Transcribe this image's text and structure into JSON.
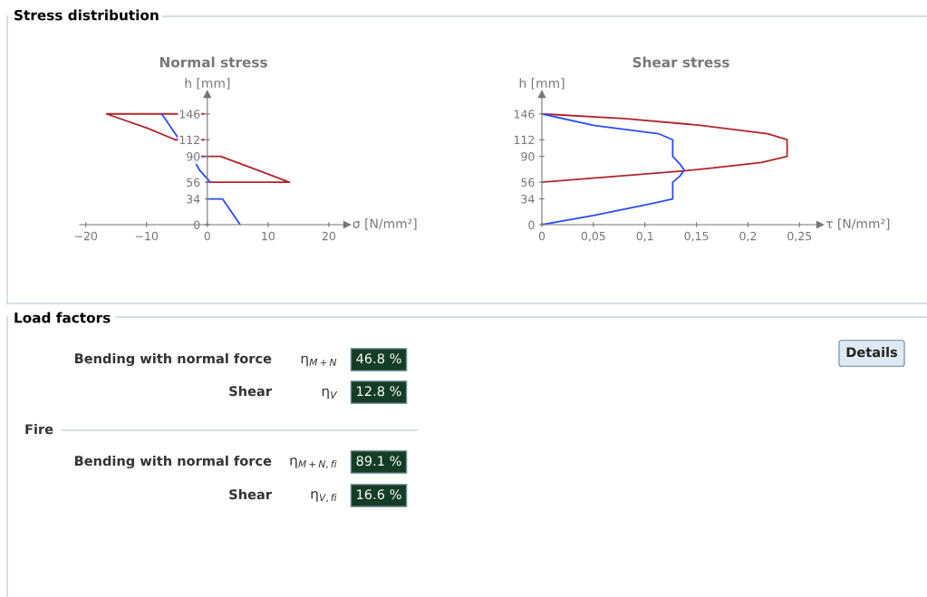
{
  "chart_data": [
    {
      "type": "line",
      "title": "Normal stress",
      "annotations": [
        "Stress distribution"
      ],
      "xlabel": "σ [N/mm²]",
      "ylabel": "h [mm]",
      "xlim": [
        -21,
        23
      ],
      "xticks": [
        {
          "value": -20,
          "label": "−20"
        },
        {
          "value": -10,
          "label": "−10"
        },
        0,
        10,
        20
      ],
      "ylim": [
        0,
        172
      ],
      "yticks": [
        0,
        34,
        56,
        90,
        112,
        146
      ],
      "marker": "none",
      "series": [
        {
          "color": "#b0242c",
          "x": [
            -0.6,
            -16.6,
            -9.8,
            -5.3,
            -0.6,
            null,
            -2.5,
            2.2,
            7.9,
            13.5,
            0
          ],
          "values": [
            146,
            146,
            127,
            112,
            112,
            null,
            90,
            90,
            73,
            56,
            56
          ]
        },
        {
          "color": "#2a4cf5",
          "x": [
            -7.5,
            -4.6,
            null,
            -0.8,
            -2.5,
            -1.3,
            0.5,
            null,
            0,
            2.5,
            5.4
          ],
          "values": [
            146,
            112,
            null,
            90,
            90,
            72,
            56,
            null,
            34,
            34,
            0
          ]
        }
      ]
    },
    {
      "type": "line",
      "title": "Shear stress",
      "xlabel": "τ [N/mm²]",
      "ylabel": "h [mm]",
      "xlim": [
        0,
        0.27
      ],
      "xticks": [
        0,
        {
          "value": 0.05,
          "label": "0,05"
        },
        {
          "value": 0.1,
          "label": "0,1"
        },
        {
          "value": 0.15,
          "label": "0,15"
        },
        {
          "value": 0.2,
          "label": "0,2"
        },
        {
          "value": 0.25,
          "label": "0,25"
        }
      ],
      "ylim": [
        0,
        172
      ],
      "yticks": [
        0,
        34,
        56,
        90,
        112,
        146
      ],
      "marker": "none",
      "series": [
        {
          "color": "#b0242c",
          "x": [
            0,
            0.08,
            0.154,
            0.219,
            0.238,
            0.238,
            0.213,
            0.16,
            0.138,
            0
          ],
          "values": [
            146,
            140,
            131,
            120,
            112,
            90,
            82,
            74,
            71,
            56
          ]
        },
        {
          "color": "#2a4cf5",
          "x": [
            0,
            0.05,
            0.107,
            0.127,
            0.127,
            0.134,
            0.138,
            0.134,
            0.127,
            0.127,
            0.113,
            0.05,
            0
          ],
          "values": [
            0,
            12,
            28,
            34,
            56,
            64,
            72,
            80,
            90,
            112,
            120,
            131,
            146
          ]
        }
      ]
    },
    {
      "type": "other",
      "title": "Load factors",
      "annotations": [
        "Bending with normal force",
        "η$_{M+N}$",
        "46.8 %",
        "Shear",
        "η$_{V}$",
        "12.8 %",
        "Fire",
        "Bending with normal force",
        "η$_{M+N,fi}$",
        "89.1 %",
        "Shear",
        "η$_{V,fi}$",
        "16.6 %",
        "Details"
      ]
    }
  ]
}
